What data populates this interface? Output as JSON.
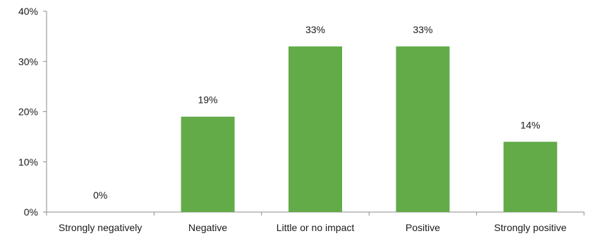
{
  "chart_data": {
    "type": "bar",
    "categories": [
      "Strongly negatively",
      "Negative",
      "Little or no impact",
      "Positive",
      "Strongly positive"
    ],
    "values": [
      0,
      19,
      33,
      33,
      14
    ],
    "value_labels": [
      "0%",
      "19%",
      "33%",
      "33%",
      "14%"
    ],
    "y_ticks": [
      0,
      10,
      20,
      30,
      40
    ],
    "y_tick_labels": [
      "0%",
      "10%",
      "20%",
      "30%",
      "40%"
    ],
    "ylim": [
      0,
      40
    ],
    "grid": false,
    "legend": "none",
    "title": "",
    "xlabel": "",
    "ylabel": "",
    "colors": {
      "bar": "#62ab48",
      "axis": "#8c8c8c"
    }
  }
}
